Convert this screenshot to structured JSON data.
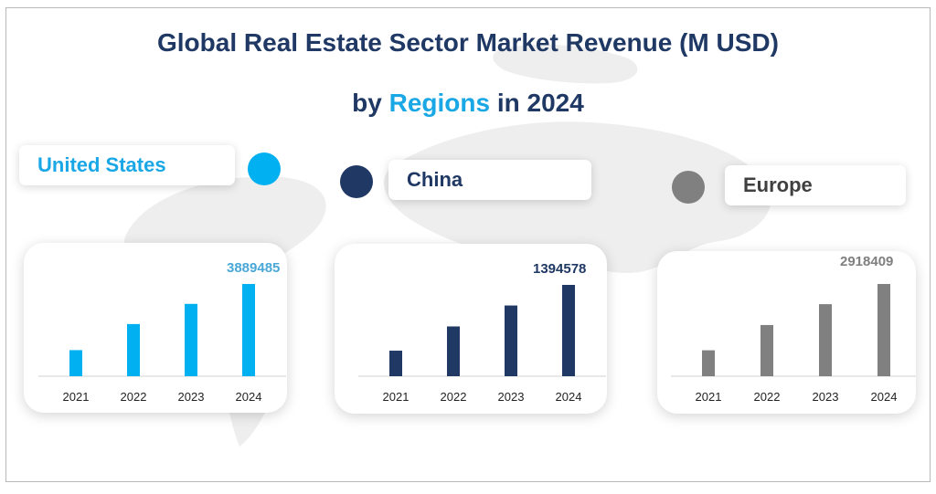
{
  "title": {
    "line1": "Global Real Estate Sector Market Revenue (M USD)",
    "line2_prefix": "by",
    "line2_accent": "Regions",
    "line2_suffix": "in 2024"
  },
  "colors": {
    "title": "#1f3864",
    "accent": "#1aa7e6",
    "us": "#00b0f0",
    "china": "#1f3864",
    "europe": "#808080",
    "axis": "#d0d0d0",
    "map": "#eeeeee"
  },
  "chart_data": [
    {
      "type": "bar",
      "region": "United States",
      "color": "#00b0f0",
      "label_color": "#4aa8d8",
      "categories": [
        "2021",
        "2022",
        "2023",
        "2024"
      ],
      "values": [
        1100000,
        2200000,
        3050000,
        3889485
      ],
      "ylim": [
        0,
        3889485
      ],
      "data_label": "3889485",
      "title": "",
      "xlabel": "",
      "ylabel": ""
    },
    {
      "type": "bar",
      "region": "China",
      "color": "#1f3864",
      "label_color": "#1f3864",
      "categories": [
        "2021",
        "2022",
        "2023",
        "2024"
      ],
      "values": [
        390000,
        760000,
        1080000,
        1394578
      ],
      "ylim": [
        0,
        1394578
      ],
      "data_label": "1394578",
      "title": "",
      "xlabel": "",
      "ylabel": ""
    },
    {
      "type": "bar",
      "region": "Europe",
      "color": "#808080",
      "label_color": "#7f7f7f",
      "categories": [
        "2021",
        "2022",
        "2023",
        "2024"
      ],
      "values": [
        820000,
        1620000,
        2280000,
        2918409
      ],
      "ylim": [
        0,
        2918409
      ],
      "data_label": "2918409",
      "title": "",
      "xlabel": "",
      "ylabel": ""
    }
  ]
}
